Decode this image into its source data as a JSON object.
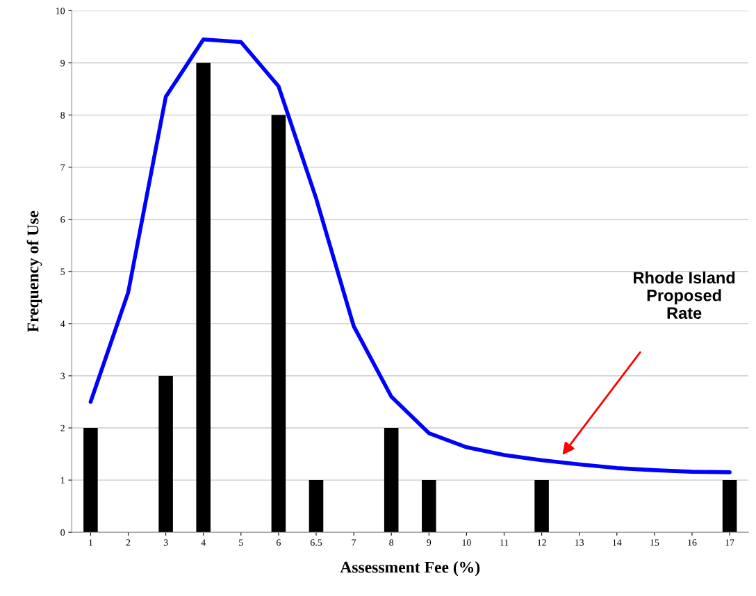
{
  "chart_data": {
    "type": "bar",
    "xlabel": "Assessment Fee (%)",
    "ylabel": "Frequency of Use",
    "categories": [
      "1",
      "2",
      "3",
      "4",
      "5",
      "6",
      "6.5",
      "7",
      "8",
      "9",
      "10",
      "11",
      "12",
      "13",
      "14",
      "15",
      "16",
      "17"
    ],
    "series": [
      {
        "color": "#000000",
        "values": [
          2,
          0,
          3,
          9,
          0,
          8,
          1,
          0,
          2,
          1,
          0,
          0,
          1,
          0,
          0,
          0,
          0,
          1
        ]
      },
      {
        "type": "line",
        "color": "#0000ff",
        "values": [
          2.5,
          4.6,
          8.35,
          9.45,
          9.4,
          8.55,
          6.4,
          3.95,
          2.6,
          1.9,
          1.63,
          1.48,
          1.38,
          1.3,
          1.23,
          1.19,
          1.16,
          1.15
        ]
      }
    ],
    "ylim": [
      0,
      10
    ],
    "yticks": [
      0,
      1,
      2,
      3,
      4,
      5,
      6,
      7,
      8,
      9,
      10
    ],
    "grid": "y",
    "marker": "none",
    "line_style": "solid",
    "annotations": [
      "Rhode Island\nProposed\nRate"
    ]
  }
}
